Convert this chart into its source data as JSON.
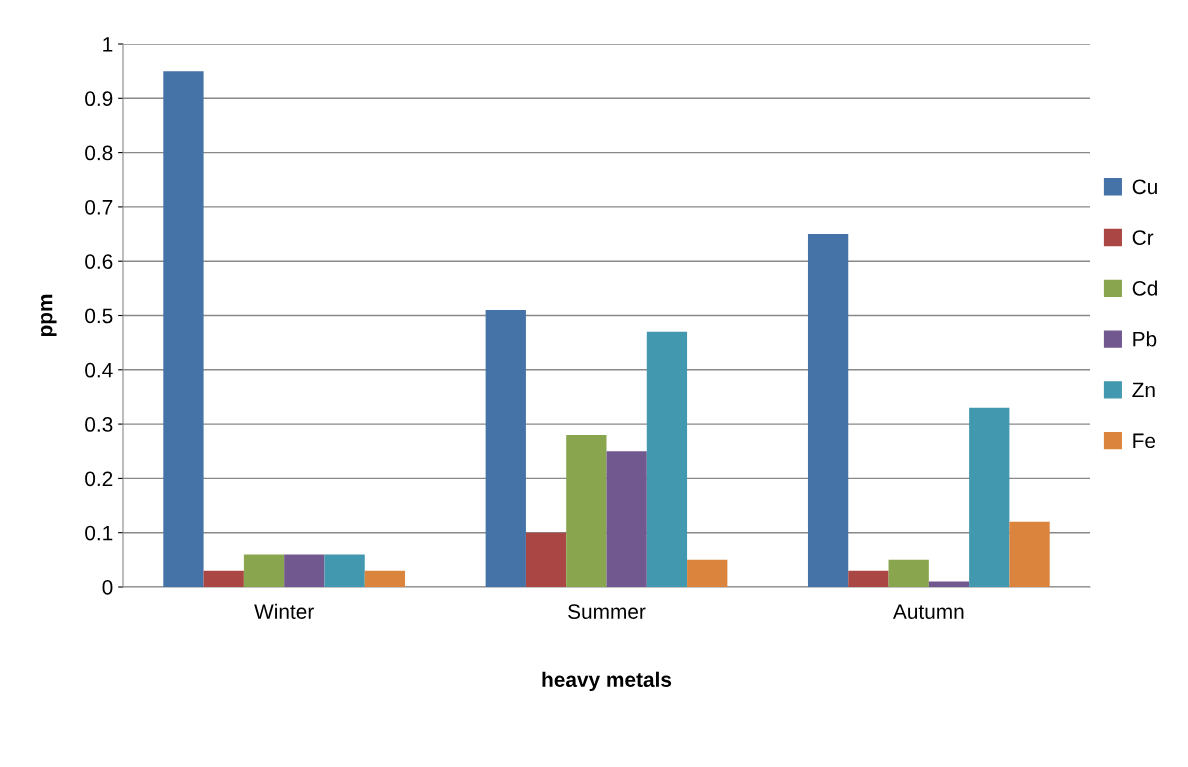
{
  "chart_data": {
    "type": "bar",
    "xlabel": "heavy metals",
    "ylabel": "ppm",
    "categories": [
      "Winter",
      "Summer",
      "Autumn"
    ],
    "series": [
      {
        "name": "Cu",
        "color": "#4572a7",
        "values": [
          0.95,
          0.51,
          0.65
        ]
      },
      {
        "name": "Cr",
        "color": "#aa4643",
        "values": [
          0.03,
          0.1,
          0.03
        ]
      },
      {
        "name": "Cd",
        "color": "#89a54e",
        "values": [
          0.06,
          0.28,
          0.05
        ]
      },
      {
        "name": "Pb",
        "color": "#71588f",
        "values": [
          0.06,
          0.25,
          0.01
        ]
      },
      {
        "name": "Zn",
        "color": "#4198af",
        "values": [
          0.06,
          0.47,
          0.33
        ]
      },
      {
        "name": "Fe",
        "color": "#db843d",
        "values": [
          0.03,
          0.05,
          0.12
        ]
      }
    ],
    "ylim": [
      0,
      1
    ],
    "yticks": [
      0,
      0.1,
      0.2,
      0.3,
      0.4,
      0.5,
      0.6,
      0.7,
      0.8,
      0.9,
      1
    ],
    "grid": "y",
    "legend": "right"
  }
}
